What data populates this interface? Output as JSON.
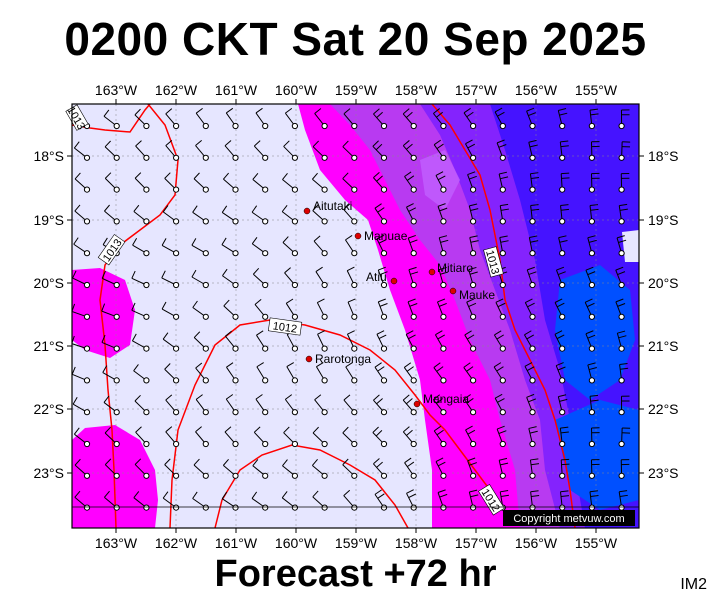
{
  "header": {
    "title": "0200 CKT Sat 20 Sep 2025"
  },
  "footer": {
    "subtitle": "Forecast +72 hr",
    "image_tag": "IM2",
    "copyright": "Copyright metvuw.com"
  },
  "map": {
    "lon_labels": [
      "163°W",
      "162°W",
      "161°W",
      "160°W",
      "159°W",
      "158°W",
      "157°W",
      "156°W",
      "155°W"
    ],
    "lat_labels": [
      "18°S",
      "19°S",
      "20°S",
      "21°S",
      "22°S",
      "23°S"
    ],
    "isobar_labels": [
      "1013",
      "1013",
      "1013",
      "1012",
      "1012"
    ],
    "places": [
      {
        "name": "Aitutaki"
      },
      {
        "name": "Manuae"
      },
      {
        "name": "Atiu"
      },
      {
        "name": "Mitiaro"
      },
      {
        "name": "Mauke"
      },
      {
        "name": "Rarotonga"
      },
      {
        "name": "Mangaia"
      }
    ],
    "colors": {
      "calm": "#e6e6ff",
      "magenta": "#ff00ff",
      "purple": "#a020f0",
      "blue": "#0000ff",
      "isobar": "#ff0000",
      "place_dot": "#dd0000"
    }
  }
}
